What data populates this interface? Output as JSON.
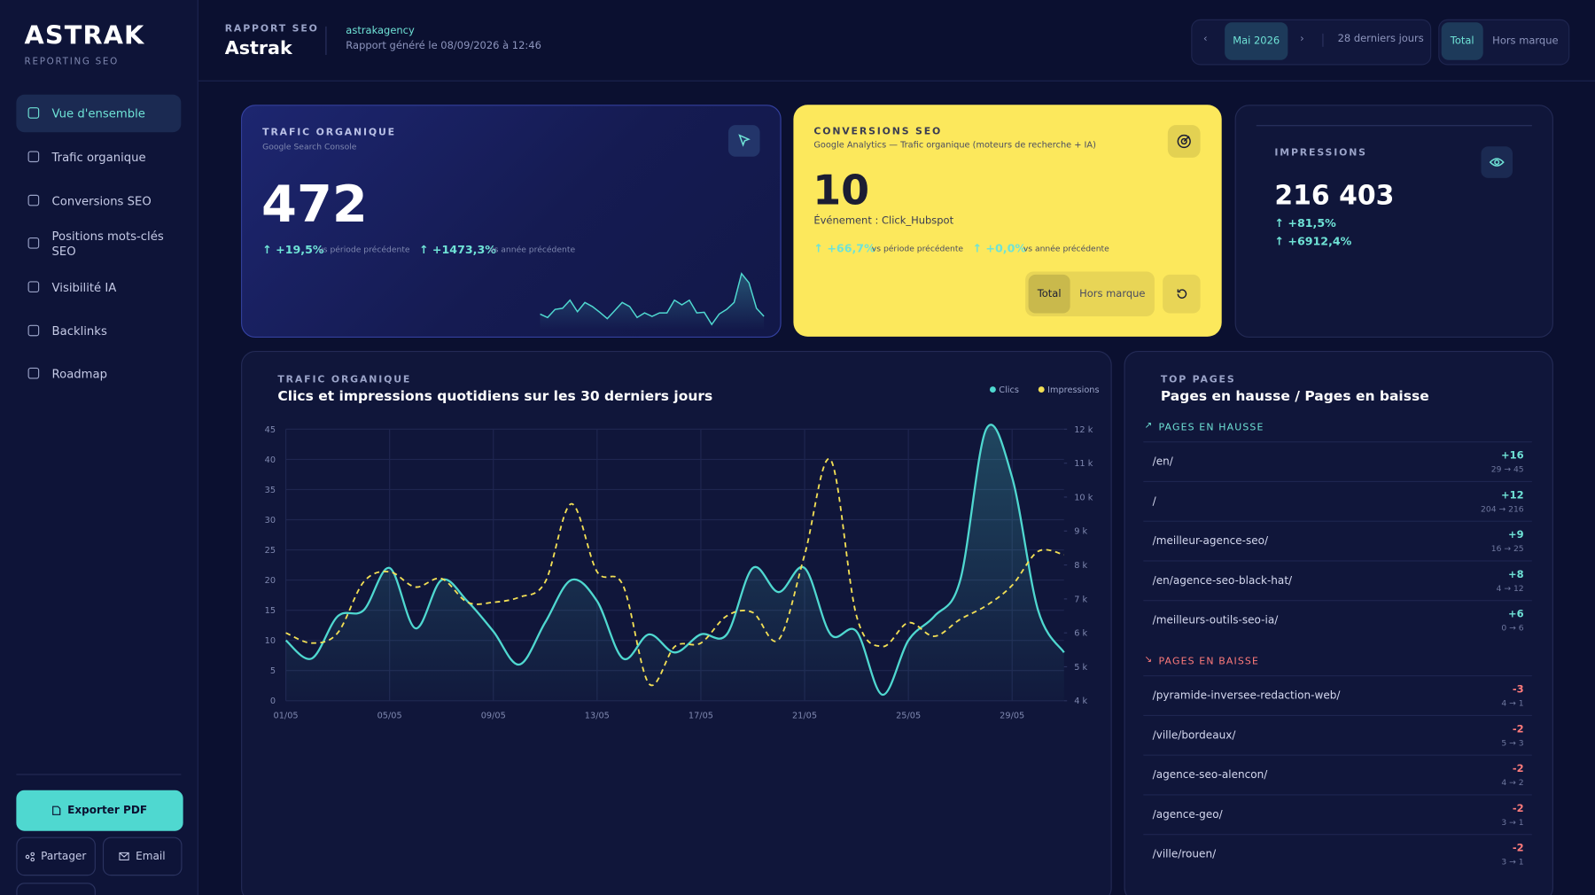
{
  "sidebar": {
    "logo": "ASTRAK",
    "tagline": "REPORTING SEO",
    "nav": [
      "Vue d'ensemble",
      "Trafic organique",
      "Conversions SEO",
      "Positions mots-clés SEO",
      "Visibilité IA",
      "Backlinks",
      "Roadmap"
    ],
    "export": "Exporter PDF",
    "share": "Partager",
    "email": "Email"
  },
  "header": {
    "eyebrow": "RAPPORT SEO",
    "title": "Astrak",
    "account": "astrakagency",
    "generated": "Rapport généré le 08/09/2026 à 12:46",
    "month": "Mai 2026",
    "period": "28 derniers jours",
    "segments": [
      "Total",
      "Hors marque"
    ]
  },
  "kpis": [
    {
      "label": "TRAFIC ORGANIQUE",
      "source": "Google Search Console",
      "value": "472",
      "changes": [
        {
          "value": "+19,5%",
          "context": "vs période précédente"
        },
        {
          "value": "+1473,3%",
          "context": "vs année précédente"
        }
      ]
    },
    {
      "label": "CONVERSIONS SEO",
      "source": "Google Analytics — Trafic organique (moteurs de recherche + IA)",
      "value": "10",
      "event": "Événement : Click_Hubspot",
      "changes": [
        {
          "value": "+66,7%",
          "context": "vs période précédente"
        },
        {
          "value": "+0,0%",
          "context": "vs année précédente"
        }
      ],
      "segments": [
        "Total",
        "Hors marque"
      ]
    },
    {
      "label": "IMPRESSIONS",
      "value": "216 403",
      "changes": [
        {
          "value": "+81,5%"
        },
        {
          "value": "+6912,4%"
        }
      ]
    }
  ],
  "chart_data": {
    "type": "line",
    "eyebrow": "TRAFIC ORGANIQUE",
    "title": "Clics et impressions quotidiens sur les 30 derniers jours",
    "categories": [
      "01/05",
      null,
      null,
      null,
      "05/05",
      null,
      null,
      null,
      "09/05",
      null,
      null,
      null,
      "13/05",
      null,
      null,
      null,
      "17/05",
      null,
      null,
      null,
      "21/05",
      null,
      null,
      null,
      "25/05",
      null,
      null,
      null,
      "29/05",
      null,
      null
    ],
    "series": [
      {
        "name": "Clics",
        "color": "#4fd8d0",
        "fill_area": true,
        "values": [
          10,
          7,
          14,
          15,
          22,
          12,
          20,
          16.5,
          11.5,
          6,
          13,
          20,
          16.5,
          7,
          11,
          8,
          11,
          11,
          22,
          18,
          22,
          11,
          11.5,
          1,
          10,
          14,
          20,
          45,
          37,
          15,
          8
        ]
      },
      {
        "name": "Impressions",
        "color": "#f2df55",
        "dashed": true,
        "axis": "y2",
        "values": [
          6000,
          5700,
          6000,
          7500,
          7800,
          7350,
          7600,
          6900,
          6900,
          7050,
          7500,
          9800,
          7800,
          7400,
          4500,
          5600,
          5700,
          6500,
          6600,
          5800,
          8300,
          11100,
          6500,
          5600,
          6300,
          5900,
          6400,
          6800,
          7400,
          8400,
          8300
        ]
      }
    ],
    "ylim": [
      0,
      45
    ],
    "yticks": [
      0,
      5,
      10,
      15,
      20,
      25,
      30,
      35,
      40,
      45
    ],
    "y2lim": [
      4000,
      12000
    ],
    "y2ticks": [
      {
        "value": 4000,
        "label": "4 k"
      },
      {
        "value": 5000,
        "label": "5 k"
      },
      {
        "value": 6000,
        "label": "6 k"
      },
      {
        "value": 7000,
        "label": "7 k"
      },
      {
        "value": 8000,
        "label": "8 k"
      },
      {
        "value": 9000,
        "label": "9 k"
      },
      {
        "value": 10000,
        "label": "10 k"
      },
      {
        "value": 11000,
        "label": "11 k"
      },
      {
        "value": 12000,
        "label": "12 k"
      }
    ],
    "grid": true,
    "legend": "top-right"
  },
  "top_pages": {
    "eyebrow": "TOP PAGES",
    "title": "Pages en hausse / Pages en baisse",
    "sections": [
      {
        "title": "PAGES EN HAUSSE",
        "rows": [
          {
            "page": "/en/",
            "delta": "+16",
            "range": "29 → 45"
          },
          {
            "page": "/",
            "delta": "+12",
            "range": "204 → 216"
          },
          {
            "page": "/meilleur-agence-seo/",
            "delta": "+9",
            "range": "16 → 25"
          },
          {
            "page": "/en/agence-seo-black-hat/",
            "delta": "+8",
            "range": "4 → 12"
          },
          {
            "page": "/meilleurs-outils-seo-ia/",
            "delta": "+6",
            "range": "0 → 6"
          }
        ]
      },
      {
        "title": "PAGES EN BAISSE",
        "rows": [
          {
            "page": "/pyramide-inversee-redaction-web/",
            "delta": "-3",
            "range": "4 → 1"
          },
          {
            "page": "/ville/bordeaux/",
            "delta": "-2",
            "range": "5 → 3"
          },
          {
            "page": "/agence-seo-alencon/",
            "delta": "-2",
            "range": "4 → 2"
          },
          {
            "page": "/agence-geo/",
            "delta": "-2",
            "range": "3 → 1"
          },
          {
            "page": "/ville/rouen/",
            "delta": "-2",
            "range": "3 → 1"
          }
        ]
      }
    ]
  }
}
